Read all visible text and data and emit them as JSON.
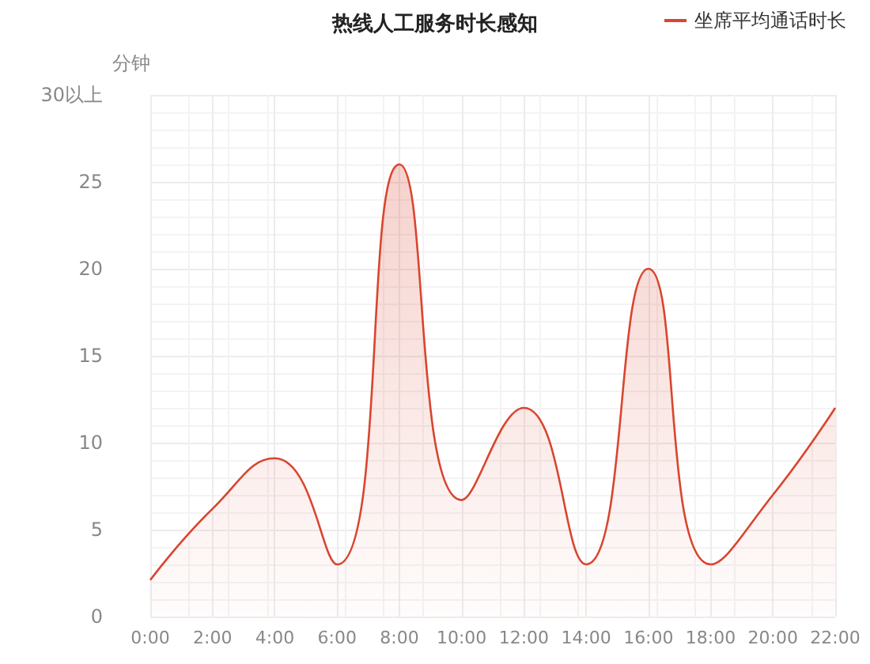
{
  "chart_data": {
    "type": "area",
    "title": "热线人工服务时长感知",
    "ylabel": "分钟",
    "x": [
      0,
      2,
      4,
      6,
      8,
      10,
      12,
      14,
      16,
      18,
      20,
      22
    ],
    "series": [
      {
        "name": "坐席平均通话时长",
        "color": "#d9452f",
        "values": [
          2.1,
          6.2,
          9.1,
          3,
          26,
          6.7,
          12,
          3,
          20,
          3,
          7,
          12
        ]
      }
    ],
    "xlim": [
      0,
      22
    ],
    "xticks": [
      {
        "value": 0,
        "label": "0:00"
      },
      {
        "value": 2,
        "label": "2:00"
      },
      {
        "value": 4,
        "label": "4:00"
      },
      {
        "value": 6,
        "label": "6:00"
      },
      {
        "value": 8,
        "label": "8:00"
      },
      {
        "value": 10,
        "label": "10:00"
      },
      {
        "value": 12,
        "label": "12:00"
      },
      {
        "value": 14,
        "label": "14:00"
      },
      {
        "value": 16,
        "label": "16:00"
      },
      {
        "value": 18,
        "label": "18:00"
      },
      {
        "value": 20,
        "label": "20:00"
      },
      {
        "value": 22,
        "label": "22:00"
      }
    ],
    "ylim": [
      0,
      30
    ],
    "yticks": [
      0,
      5,
      10,
      15,
      20,
      25,
      {
        "value": 30,
        "label": "30以上"
      }
    ],
    "grid": true,
    "legend": "top right",
    "marker": "none",
    "line_style": "solid"
  }
}
